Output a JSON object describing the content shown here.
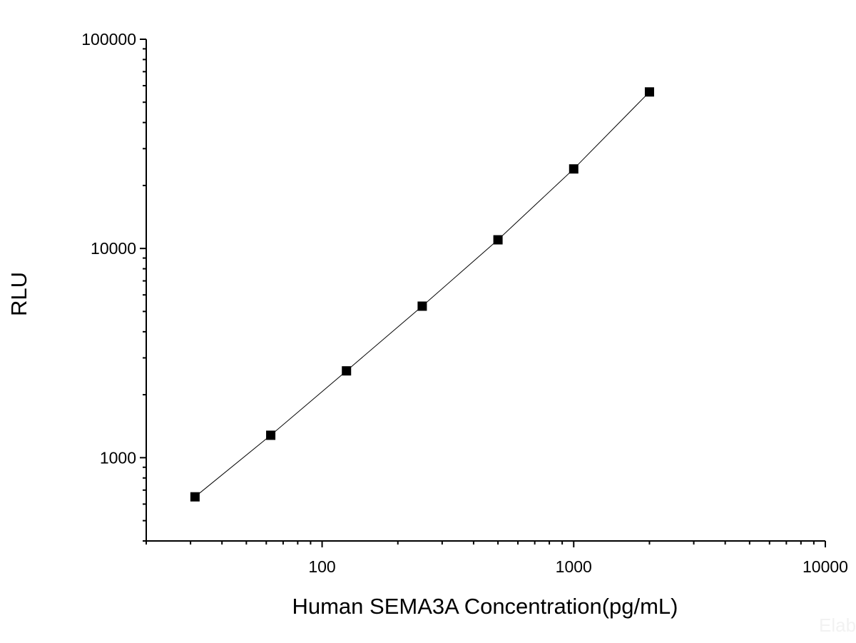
{
  "chart_data": {
    "type": "line",
    "title": "",
    "xlabel": "Human SEMA3A Concentration(pg/mL)",
    "ylabel": "RLU",
    "xscale": "log",
    "yscale": "log",
    "xlim": [
      20,
      10000
    ],
    "ylim": [
      400,
      100000
    ],
    "grid": false,
    "legend": "none",
    "x_tick_labels": [
      "100",
      "1000",
      "10000"
    ],
    "y_tick_labels": [
      "1000",
      "10000",
      "100000"
    ],
    "series": [
      {
        "x": [
          31.25,
          62.5,
          125,
          250,
          500,
          1000,
          2000
        ],
        "y": [
          650,
          1280,
          2600,
          5300,
          11000,
          24000,
          56000
        ],
        "marker": "square",
        "color": "#000000"
      }
    ]
  },
  "watermark": "Elab"
}
